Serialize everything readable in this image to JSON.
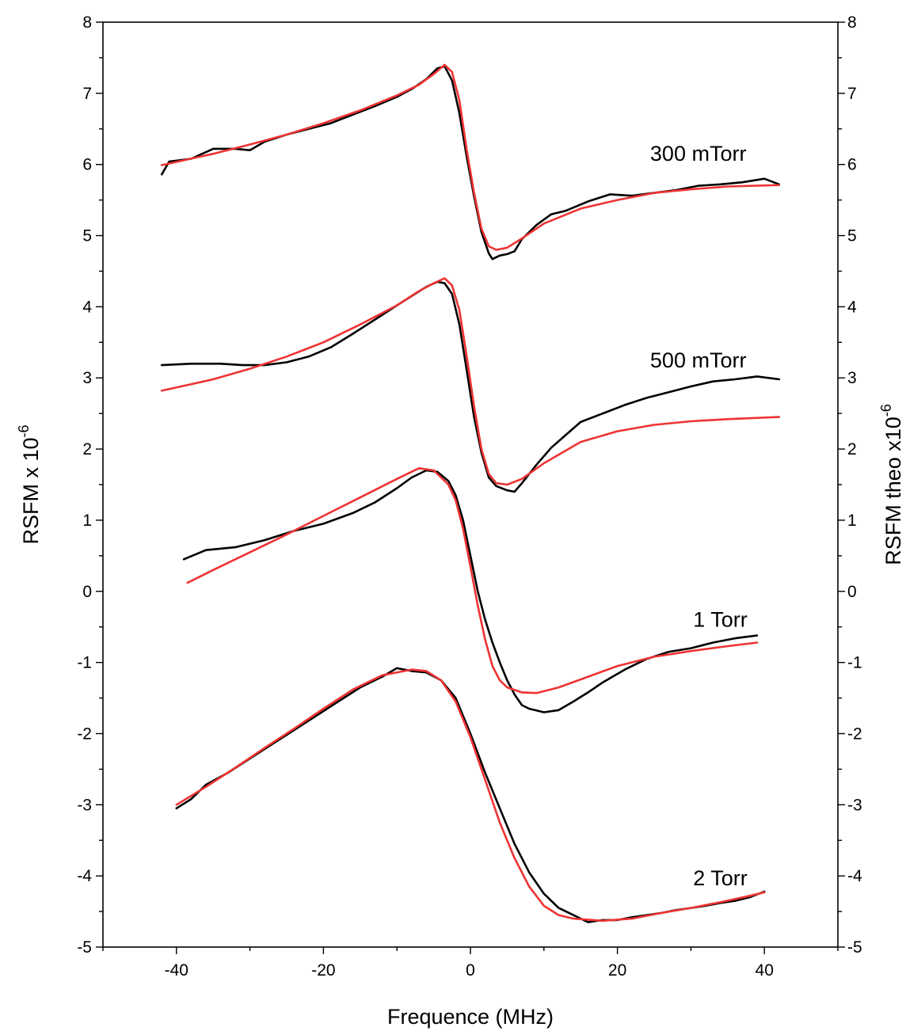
{
  "chart_data": {
    "type": "line",
    "xlabel": "Frequence (MHz)",
    "ylabel_left": {
      "base": "RSFM  x 10",
      "sup": "-6"
    },
    "ylabel_right": {
      "base": "RSFM theo  x10",
      "sup": "-6"
    },
    "xlim": [
      -50,
      50
    ],
    "ylim": [
      -5,
      8
    ],
    "x_ticks": [
      -40,
      -20,
      0,
      20,
      40
    ],
    "y_ticks": [
      -5,
      -4,
      -3,
      -2,
      -1,
      0,
      1,
      2,
      3,
      4,
      5,
      6,
      7,
      8
    ],
    "grid": false,
    "colors": {
      "measured": "#000000",
      "theory": "#ee3333"
    },
    "series": [
      {
        "label": "300 mTorr",
        "measured": [
          [
            -42,
            5.86
          ],
          [
            -41,
            6.04
          ],
          [
            -38,
            6.08
          ],
          [
            -35,
            6.22
          ],
          [
            -32,
            6.22
          ],
          [
            -30,
            6.2
          ],
          [
            -28,
            6.32
          ],
          [
            -25,
            6.42
          ],
          [
            -22,
            6.5
          ],
          [
            -19,
            6.58
          ],
          [
            -16,
            6.7
          ],
          [
            -13,
            6.82
          ],
          [
            -10,
            6.95
          ],
          [
            -8,
            7.06
          ],
          [
            -6,
            7.2
          ],
          [
            -4.5,
            7.35
          ],
          [
            -3.5,
            7.38
          ],
          [
            -2.5,
            7.18
          ],
          [
            -1.5,
            6.72
          ],
          [
            -0.5,
            6.1
          ],
          [
            0.5,
            5.55
          ],
          [
            1.5,
            5.05
          ],
          [
            2.5,
            4.75
          ],
          [
            3,
            4.67
          ],
          [
            4,
            4.72
          ],
          [
            5,
            4.74
          ],
          [
            6,
            4.78
          ],
          [
            7,
            4.95
          ],
          [
            9,
            5.15
          ],
          [
            11,
            5.3
          ],
          [
            13,
            5.35
          ],
          [
            16,
            5.48
          ],
          [
            19,
            5.58
          ],
          [
            22,
            5.56
          ],
          [
            25,
            5.6
          ],
          [
            28,
            5.64
          ],
          [
            31,
            5.7
          ],
          [
            34,
            5.72
          ],
          [
            37,
            5.75
          ],
          [
            40,
            5.8
          ],
          [
            42,
            5.72
          ]
        ],
        "theory": [
          [
            -42,
            5.99
          ],
          [
            -35,
            6.15
          ],
          [
            -30,
            6.28
          ],
          [
            -25,
            6.42
          ],
          [
            -20,
            6.58
          ],
          [
            -15,
            6.76
          ],
          [
            -10,
            6.97
          ],
          [
            -7,
            7.12
          ],
          [
            -5,
            7.27
          ],
          [
            -3.5,
            7.4
          ],
          [
            -2.5,
            7.3
          ],
          [
            -1.5,
            6.9
          ],
          [
            -0.5,
            6.2
          ],
          [
            0.5,
            5.6
          ],
          [
            1.5,
            5.1
          ],
          [
            2.5,
            4.85
          ],
          [
            3.5,
            4.8
          ],
          [
            5,
            4.83
          ],
          [
            7,
            4.96
          ],
          [
            10,
            5.17
          ],
          [
            15,
            5.38
          ],
          [
            20,
            5.5
          ],
          [
            25,
            5.6
          ],
          [
            30,
            5.65
          ],
          [
            35,
            5.69
          ],
          [
            42,
            5.71
          ]
        ]
      },
      {
        "label": "500 mTorr",
        "measured": [
          [
            -42,
            3.18
          ],
          [
            -38,
            3.2
          ],
          [
            -34,
            3.2
          ],
          [
            -31,
            3.18
          ],
          [
            -28,
            3.18
          ],
          [
            -25,
            3.22
          ],
          [
            -22,
            3.3
          ],
          [
            -19,
            3.43
          ],
          [
            -16,
            3.62
          ],
          [
            -13,
            3.82
          ],
          [
            -10,
            4.02
          ],
          [
            -8,
            4.15
          ],
          [
            -6,
            4.28
          ],
          [
            -4.5,
            4.35
          ],
          [
            -3.5,
            4.33
          ],
          [
            -2.5,
            4.18
          ],
          [
            -1.5,
            3.75
          ],
          [
            -0.5,
            3.1
          ],
          [
            0.5,
            2.45
          ],
          [
            1.5,
            1.95
          ],
          [
            2.5,
            1.6
          ],
          [
            3.5,
            1.48
          ],
          [
            5,
            1.42
          ],
          [
            6,
            1.4
          ],
          [
            7,
            1.52
          ],
          [
            9,
            1.78
          ],
          [
            11,
            2.02
          ],
          [
            13,
            2.2
          ],
          [
            15,
            2.38
          ],
          [
            18,
            2.5
          ],
          [
            21,
            2.62
          ],
          [
            24,
            2.72
          ],
          [
            27,
            2.8
          ],
          [
            30,
            2.88
          ],
          [
            33,
            2.95
          ],
          [
            36,
            2.98
          ],
          [
            39,
            3.02
          ],
          [
            42,
            2.98
          ]
        ],
        "theory": [
          [
            -42,
            2.82
          ],
          [
            -35,
            2.98
          ],
          [
            -30,
            3.13
          ],
          [
            -25,
            3.3
          ],
          [
            -20,
            3.5
          ],
          [
            -15,
            3.75
          ],
          [
            -10,
            4.02
          ],
          [
            -7,
            4.22
          ],
          [
            -5,
            4.33
          ],
          [
            -3.5,
            4.4
          ],
          [
            -2.5,
            4.3
          ],
          [
            -1.5,
            3.95
          ],
          [
            -0.5,
            3.3
          ],
          [
            0.5,
            2.6
          ],
          [
            1.5,
            2.0
          ],
          [
            2.5,
            1.65
          ],
          [
            3.5,
            1.52
          ],
          [
            5,
            1.5
          ],
          [
            7,
            1.58
          ],
          [
            10,
            1.8
          ],
          [
            15,
            2.1
          ],
          [
            20,
            2.25
          ],
          [
            25,
            2.34
          ],
          [
            30,
            2.39
          ],
          [
            35,
            2.42
          ],
          [
            42,
            2.45
          ]
        ]
      },
      {
        "label": "1 Torr",
        "measured": [
          [
            -39,
            0.45
          ],
          [
            -36,
            0.58
          ],
          [
            -32,
            0.62
          ],
          [
            -28,
            0.72
          ],
          [
            -24,
            0.85
          ],
          [
            -20,
            0.95
          ],
          [
            -16,
            1.1
          ],
          [
            -13,
            1.25
          ],
          [
            -10,
            1.45
          ],
          [
            -8,
            1.6
          ],
          [
            -6,
            1.7
          ],
          [
            -4.5,
            1.68
          ],
          [
            -3,
            1.55
          ],
          [
            -2,
            1.35
          ],
          [
            -1,
            1.0
          ],
          [
            0,
            0.5
          ],
          [
            1,
            0.0
          ],
          [
            2,
            -0.4
          ],
          [
            3,
            -0.72
          ],
          [
            4,
            -1.0
          ],
          [
            5,
            -1.25
          ],
          [
            6,
            -1.45
          ],
          [
            7,
            -1.6
          ],
          [
            8,
            -1.65
          ],
          [
            10,
            -1.7
          ],
          [
            12,
            -1.67
          ],
          [
            14,
            -1.55
          ],
          [
            16,
            -1.42
          ],
          [
            18,
            -1.28
          ],
          [
            21,
            -1.1
          ],
          [
            24,
            -0.95
          ],
          [
            27,
            -0.85
          ],
          [
            30,
            -0.8
          ],
          [
            33,
            -0.72
          ],
          [
            36,
            -0.66
          ],
          [
            39,
            -0.62
          ]
        ],
        "theory": [
          [
            -38.5,
            0.12
          ],
          [
            -35,
            0.3
          ],
          [
            -30,
            0.55
          ],
          [
            -25,
            0.8
          ],
          [
            -20,
            1.06
          ],
          [
            -15,
            1.32
          ],
          [
            -10,
            1.58
          ],
          [
            -7,
            1.73
          ],
          [
            -5,
            1.7
          ],
          [
            -3,
            1.5
          ],
          [
            -2,
            1.28
          ],
          [
            -1,
            0.88
          ],
          [
            0,
            0.35
          ],
          [
            1,
            -0.2
          ],
          [
            2,
            -0.68
          ],
          [
            3,
            -1.05
          ],
          [
            4,
            -1.25
          ],
          [
            5,
            -1.35
          ],
          [
            7,
            -1.42
          ],
          [
            9,
            -1.43
          ],
          [
            12,
            -1.35
          ],
          [
            16,
            -1.2
          ],
          [
            20,
            -1.05
          ],
          [
            25,
            -0.92
          ],
          [
            30,
            -0.84
          ],
          [
            35,
            -0.77
          ],
          [
            39,
            -0.72
          ]
        ]
      },
      {
        "label": "2 Torr",
        "measured": [
          [
            -40,
            -3.05
          ],
          [
            -38,
            -2.92
          ],
          [
            -36,
            -2.72
          ],
          [
            -33,
            -2.55
          ],
          [
            -30,
            -2.35
          ],
          [
            -27,
            -2.15
          ],
          [
            -24,
            -1.95
          ],
          [
            -21,
            -1.75
          ],
          [
            -18,
            -1.55
          ],
          [
            -15,
            -1.35
          ],
          [
            -12,
            -1.2
          ],
          [
            -10,
            -1.08
          ],
          [
            -8,
            -1.12
          ],
          [
            -6,
            -1.14
          ],
          [
            -4,
            -1.25
          ],
          [
            -2,
            -1.5
          ],
          [
            0,
            -2.0
          ],
          [
            2,
            -2.55
          ],
          [
            4,
            -3.05
          ],
          [
            6,
            -3.55
          ],
          [
            8,
            -3.95
          ],
          [
            10,
            -4.25
          ],
          [
            12,
            -4.45
          ],
          [
            14,
            -4.55
          ],
          [
            16,
            -4.65
          ],
          [
            18,
            -4.62
          ],
          [
            20,
            -4.62
          ],
          [
            22,
            -4.58
          ],
          [
            24,
            -4.55
          ],
          [
            26,
            -4.52
          ],
          [
            28,
            -4.48
          ],
          [
            30,
            -4.45
          ],
          [
            32,
            -4.42
          ],
          [
            34,
            -4.38
          ],
          [
            36,
            -4.35
          ],
          [
            38,
            -4.3
          ],
          [
            40,
            -4.22
          ]
        ],
        "theory": [
          [
            -40,
            -3.0
          ],
          [
            -36,
            -2.75
          ],
          [
            -32,
            -2.48
          ],
          [
            -28,
            -2.2
          ],
          [
            -24,
            -1.93
          ],
          [
            -20,
            -1.65
          ],
          [
            -16,
            -1.38
          ],
          [
            -12,
            -1.18
          ],
          [
            -8,
            -1.1
          ],
          [
            -6,
            -1.12
          ],
          [
            -4,
            -1.25
          ],
          [
            -2,
            -1.55
          ],
          [
            0,
            -2.05
          ],
          [
            2,
            -2.65
          ],
          [
            4,
            -3.25
          ],
          [
            6,
            -3.75
          ],
          [
            8,
            -4.15
          ],
          [
            10,
            -4.42
          ],
          [
            12,
            -4.55
          ],
          [
            14,
            -4.6
          ],
          [
            18,
            -4.63
          ],
          [
            22,
            -4.6
          ],
          [
            26,
            -4.52
          ],
          [
            30,
            -4.45
          ],
          [
            34,
            -4.37
          ],
          [
            38,
            -4.28
          ],
          [
            40,
            -4.23
          ]
        ]
      }
    ]
  }
}
